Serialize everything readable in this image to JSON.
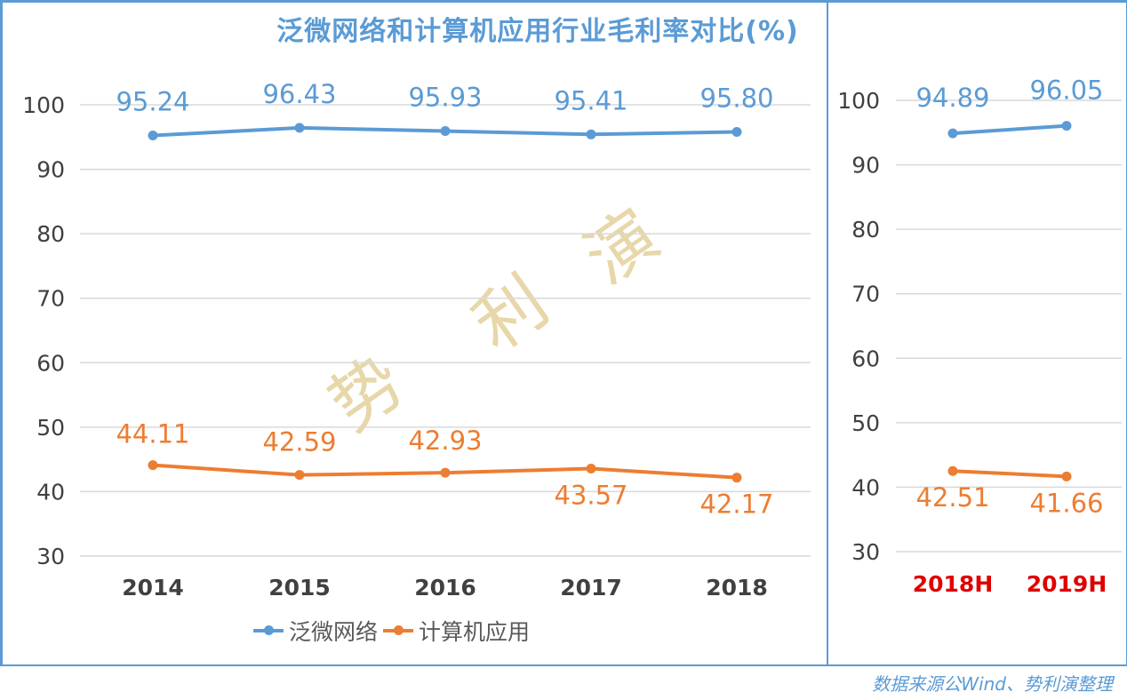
{
  "title": "泛微网络和计算机应用行业毛利率对比(%)",
  "source": "数据来源公Wind、势利演整理",
  "watermark": [
    "势",
    "利",
    "演"
  ],
  "colors": {
    "blue": "#5b9bd5",
    "orange": "#ed7d31",
    "grid": "#d9d9d9",
    "red_label": "#e00000"
  },
  "legend": [
    {
      "name": "泛微网络",
      "color": "#5b9bd5"
    },
    {
      "name": "计算机应用",
      "color": "#ed7d31"
    }
  ],
  "chart_data": [
    {
      "type": "line",
      "title": "泛微网络和计算机应用行业毛利率对比(%)",
      "categories": [
        "2014",
        "2015",
        "2016",
        "2017",
        "2018"
      ],
      "series": [
        {
          "name": "泛微网络",
          "values": [
            95.24,
            96.43,
            95.93,
            95.41,
            95.8
          ]
        },
        {
          "name": "计算机应用",
          "values": [
            44.11,
            42.59,
            42.93,
            43.57,
            42.17
          ]
        }
      ],
      "yticks": [
        30,
        40,
        50,
        60,
        70,
        80,
        90,
        100
      ],
      "ylim": [
        30,
        100
      ],
      "grid": true,
      "legend_position": "bottom"
    },
    {
      "type": "line",
      "categories": [
        "2018H",
        "2019H"
      ],
      "series": [
        {
          "name": "泛微网络",
          "values": [
            94.89,
            96.05
          ]
        },
        {
          "name": "计算机应用",
          "values": [
            42.51,
            41.66
          ]
        }
      ],
      "yticks": [
        30,
        40,
        50,
        60,
        70,
        80,
        90,
        100
      ],
      "ylim": [
        30,
        100
      ],
      "grid": true
    }
  ]
}
